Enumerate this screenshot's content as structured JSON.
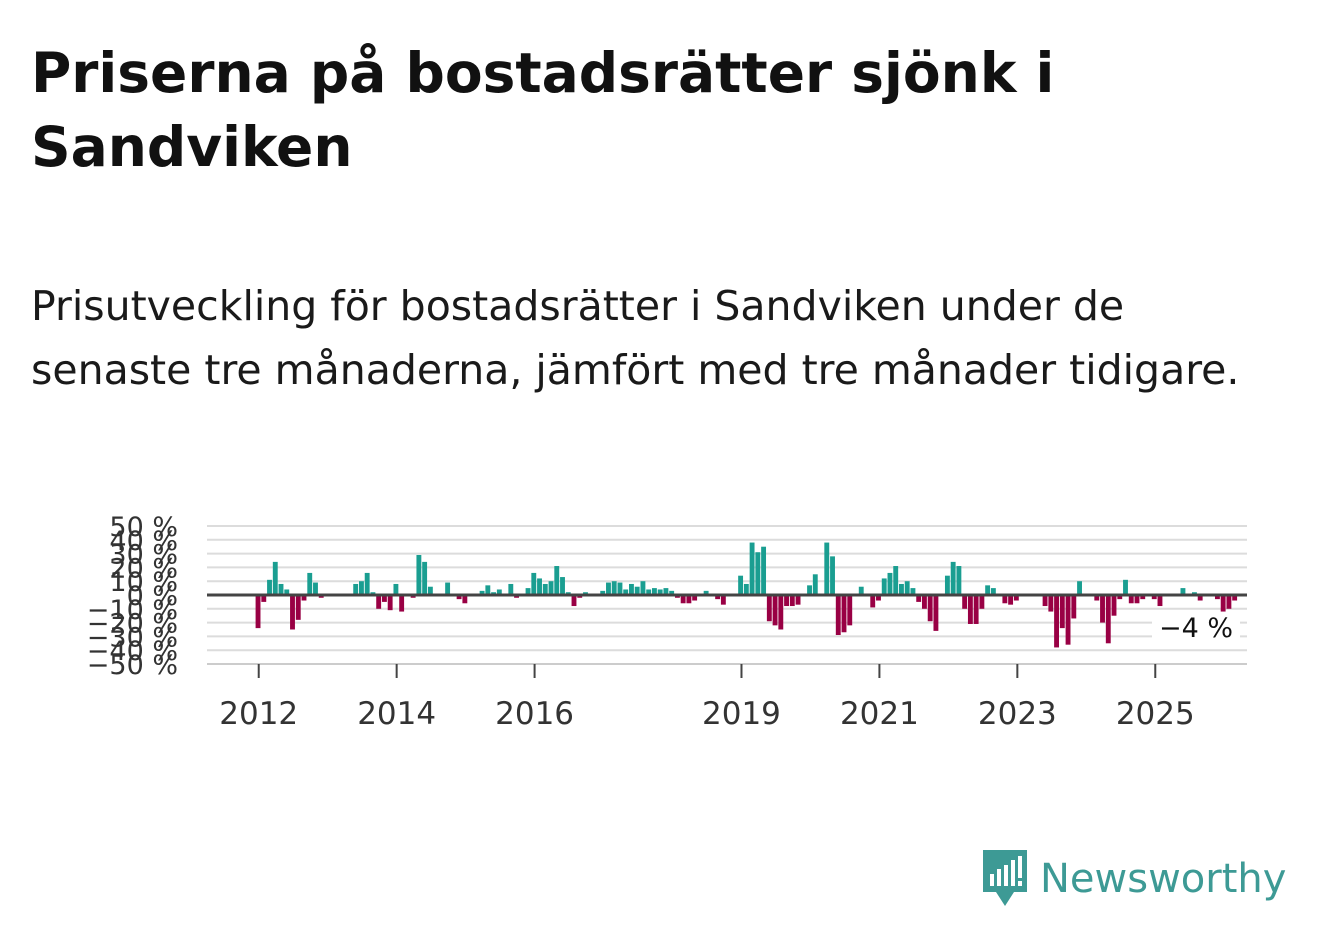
{
  "title": "Priserna på bostadsrätter sjönk i Sandviken",
  "subtitle": "Prisutveckling för bostadsrätter i Sandviken under de senaste tre månaderna, jämfört med tre månader tidigare.",
  "brand": {
    "name": "Newsworthy",
    "color": "#3d9a95",
    "icon": "newsworthy-logo-icon"
  },
  "chart_data": {
    "type": "bar",
    "title": "",
    "xlabel": "",
    "ylabel": "",
    "ylim": [
      -50,
      50
    ],
    "y_ticks": [
      50,
      40,
      30,
      20,
      10,
      0,
      -10,
      -20,
      -30,
      -40,
      -50
    ],
    "y_tick_labels": [
      "50 %",
      "40 %",
      "30 %",
      "20 %",
      "10 %",
      "0 %",
      "−10 %",
      "−20 %",
      "−30 %",
      "−40 %",
      "−50 %"
    ],
    "x_ticks": [
      "2012",
      "2014",
      "2016",
      "2019",
      "2021",
      "2023",
      "2025"
    ],
    "x_tick_positions": [
      2012.0,
      2014.0,
      2016.0,
      2019.0,
      2021.0,
      2023.0,
      2025.0
    ],
    "x_range": [
      2011.25,
      2026.33
    ],
    "start": 2011.99,
    "step": 0.0833,
    "positive_color": "#1a9e91",
    "negative_color": "#990044",
    "grid": true,
    "annotation": "−4 %",
    "values": [
      -24,
      -5,
      11,
      24,
      8,
      4,
      -25,
      -18,
      -4,
      16,
      9,
      -2,
      0,
      0,
      0,
      0,
      0,
      8,
      10,
      16,
      2,
      -10,
      -5,
      -11,
      8,
      -12,
      0,
      -2,
      29,
      24,
      6,
      0,
      0,
      9,
      0,
      -3,
      -6,
      0,
      0,
      3,
      7,
      2,
      4,
      0,
      8,
      -2,
      0,
      5,
      16,
      12,
      8,
      10,
      21,
      13,
      2,
      -8,
      -2,
      2,
      0,
      0,
      3,
      9,
      10,
      9,
      4,
      8,
      6,
      10,
      4,
      5,
      4,
      5,
      3,
      -2,
      -6,
      -6,
      -4,
      0,
      3,
      0,
      -3,
      -7,
      0,
      0,
      14,
      8,
      38,
      31,
      35,
      -19,
      -22,
      -25,
      -8,
      -8,
      -7,
      0,
      7,
      15,
      0,
      38,
      28,
      -29,
      -27,
      -22,
      0,
      6,
      0,
      -9,
      -4,
      12,
      16,
      21,
      8,
      10,
      5,
      -5,
      -10,
      -19,
      -26,
      0,
      14,
      24,
      21,
      -10,
      -21,
      -21,
      -10,
      7,
      5,
      0,
      -6,
      -7,
      -4,
      0,
      0,
      0,
      0,
      -8,
      -12,
      -38,
      -24,
      -36,
      -17,
      10,
      0,
      0,
      -4,
      -20,
      -35,
      -15,
      -3,
      11,
      -6,
      -6,
      -3,
      0,
      -3,
      -8,
      0,
      0,
      0,
      5,
      0,
      2,
      -4,
      0,
      0,
      -3,
      -12,
      -10,
      -4
    ]
  }
}
